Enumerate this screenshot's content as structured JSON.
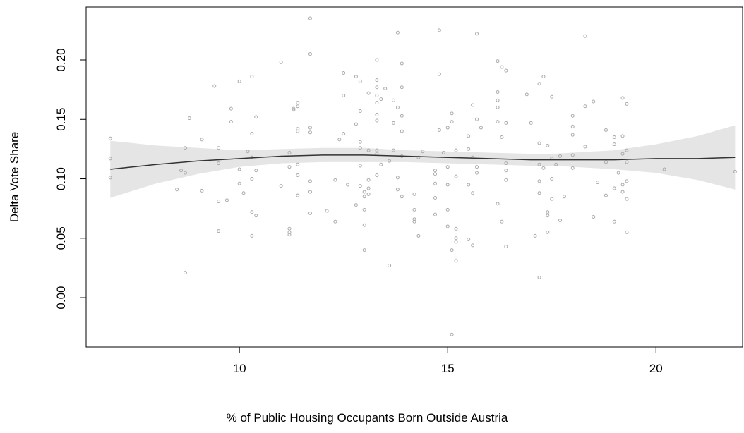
{
  "chart_data": {
    "type": "scatter",
    "x_label": "% of Public Housing Occupants Born Outside Austria",
    "y_label": "Delta Vote Share",
    "xlim": [
      6.32,
      22.08
    ],
    "ylim": [
      -0.0415,
      0.2445
    ],
    "xticks": [
      10,
      15,
      20
    ],
    "yticks": [
      {
        "value": 0,
        "label": "0.00"
      },
      {
        "value": 0.05,
        "label": "0.05"
      },
      {
        "value": 0.1,
        "label": "0.10"
      },
      {
        "value": 0.15,
        "label": "0.15"
      },
      {
        "value": 0.2,
        "label": "0.20"
      }
    ],
    "color": "#aaaaaa",
    "x": [
      6.9,
      6.9,
      6.9,
      8.5,
      8.6,
      8.7,
      8.7,
      8.7,
      8.8,
      9.1,
      9.1,
      9.4,
      9.5,
      9.5,
      9.5,
      9.5,
      9.7,
      9.8,
      9.8,
      10.0,
      10.0,
      10.0,
      10.1,
      10.2,
      10.3,
      10.3,
      10.3,
      10.3,
      10.3,
      10.3,
      10.4,
      10.4,
      10.4,
      11.0,
      11.0,
      11.2,
      11.2,
      11.2,
      11.2,
      11.2,
      11.3,
      11.3,
      11.4,
      11.4,
      11.4,
      11.4,
      11.4,
      11.4,
      11.4,
      11.7,
      11.7,
      11.7,
      11.7,
      11.7,
      11.7,
      11.7,
      12.1,
      12.3,
      12.3,
      12.4,
      12.5,
      12.5,
      12.5,
      12.6,
      12.8,
      12.8,
      12.8,
      12.9,
      12.9,
      12.9,
      12.9,
      12.9,
      12.9,
      13.0,
      13.0,
      13.0,
      13.0,
      13.0,
      13.1,
      13.1,
      13.1,
      13.1,
      13.1,
      13.3,
      13.3,
      13.3,
      13.3,
      13.3,
      13.3,
      13.3,
      13.3,
      13.3,
      13.3,
      13.4,
      13.4,
      13.5,
      13.6,
      13.6,
      13.7,
      13.7,
      13.7,
      13.8,
      13.8,
      13.8,
      13.8,
      13.9,
      13.9,
      13.9,
      13.9,
      13.9,
      13.9,
      14.2,
      14.2,
      14.2,
      14.2,
      14.3,
      14.3,
      14.4,
      14.7,
      14.7,
      14.7,
      14.7,
      14.7,
      14.8,
      14.8,
      14.8,
      14.9,
      15.0,
      15.0,
      15.0,
      15.0,
      15.0,
      15.1,
      15.1,
      15.1,
      15.1,
      15.2,
      15.2,
      15.2,
      15.2,
      15.2,
      15.2,
      15.5,
      15.5,
      15.5,
      15.5,
      15.6,
      15.6,
      15.6,
      15.6,
      15.7,
      15.7,
      15.7,
      15.7,
      15.8,
      16.2,
      16.2,
      16.2,
      16.2,
      16.2,
      16.2,
      16.3,
      16.3,
      16.3,
      16.4,
      16.4,
      16.4,
      16.4,
      16.4,
      16.4,
      16.9,
      17.0,
      17.1,
      17.2,
      17.2,
      17.2,
      17.2,
      17.2,
      17.2,
      17.3,
      17.3,
      17.4,
      17.4,
      17.4,
      17.4,
      17.5,
      17.5,
      17.5,
      17.5,
      17.6,
      17.7,
      17.7,
      17.8,
      18.0,
      18.0,
      18.0,
      18.0,
      18.0,
      18.3,
      18.3,
      18.3,
      18.5,
      18.5,
      18.6,
      18.8,
      18.8,
      18.8,
      19.0,
      19.0,
      19.0,
      19.0,
      19.1,
      19.2,
      19.2,
      19.2,
      19.2,
      19.2,
      19.3,
      19.3,
      19.3,
      19.3,
      19.3,
      19.3,
      20.2,
      21.9
    ],
    "values": [
      0.134,
      0.117,
      0.101,
      0.091,
      0.107,
      0.126,
      0.105,
      0.021,
      0.151,
      0.133,
      0.09,
      0.178,
      0.126,
      0.113,
      0.081,
      0.056,
      0.082,
      0.159,
      0.148,
      0.182,
      0.108,
      0.096,
      0.088,
      0.123,
      0.186,
      0.138,
      0.118,
      0.1,
      0.072,
      0.052,
      0.152,
      0.107,
      0.069,
      0.198,
      0.094,
      0.122,
      0.11,
      0.058,
      0.055,
      0.053,
      0.159,
      0.158,
      0.164,
      0.161,
      0.142,
      0.14,
      0.112,
      0.103,
      0.086,
      0.235,
      0.205,
      0.143,
      0.139,
      0.098,
      0.089,
      0.071,
      0.073,
      0.099,
      0.064,
      0.133,
      0.189,
      0.17,
      0.138,
      0.095,
      0.186,
      0.146,
      0.078,
      0.182,
      0.157,
      0.131,
      0.126,
      0.111,
      0.094,
      0.089,
      0.085,
      0.061,
      0.04,
      0.074,
      0.172,
      0.124,
      0.099,
      0.092,
      0.087,
      0.2,
      0.183,
      0.177,
      0.17,
      0.164,
      0.154,
      0.149,
      0.124,
      0.121,
      0.103,
      0.167,
      0.112,
      0.176,
      0.027,
      0.115,
      0.166,
      0.147,
      0.124,
      0.223,
      0.16,
      0.101,
      0.091,
      0.197,
      0.177,
      0.153,
      0.14,
      0.119,
      0.085,
      0.087,
      0.074,
      0.066,
      0.064,
      0.052,
      0.118,
      0.123,
      0.107,
      0.104,
      0.096,
      0.084,
      0.07,
      0.225,
      0.188,
      0.141,
      0.122,
      0.095,
      0.074,
      0.06,
      0.143,
      0.11,
      0.155,
      0.148,
      0.04,
      -0.031,
      0.124,
      0.102,
      0.058,
      0.05,
      0.047,
      0.031,
      0.136,
      0.125,
      0.095,
      0.049,
      0.118,
      0.162,
      0.088,
      0.044,
      0.222,
      0.15,
      0.11,
      0.105,
      0.143,
      0.199,
      0.173,
      0.166,
      0.16,
      0.148,
      0.079,
      0.194,
      0.135,
      0.064,
      0.191,
      0.147,
      0.107,
      0.099,
      0.043,
      0.113,
      0.171,
      0.147,
      0.052,
      0.18,
      0.13,
      0.112,
      0.098,
      0.088,
      0.017,
      0.186,
      0.109,
      0.128,
      0.072,
      0.069,
      0.055,
      0.169,
      0.117,
      0.1,
      0.083,
      0.112,
      0.119,
      0.065,
      0.085,
      0.153,
      0.144,
      0.137,
      0.12,
      0.109,
      0.22,
      0.161,
      0.127,
      0.165,
      0.068,
      0.097,
      0.141,
      0.114,
      0.086,
      0.135,
      0.092,
      0.064,
      0.129,
      0.105,
      0.168,
      0.136,
      0.121,
      0.095,
      0.089,
      0.163,
      0.124,
      0.114,
      0.098,
      0.055,
      0.083,
      0.108,
      0.106
    ],
    "fit": {
      "color": "#333333",
      "band_color": "#e5e5e5",
      "x": [
        6.9,
        8,
        9,
        10,
        11,
        12,
        12.5,
        13,
        14,
        15,
        16,
        17,
        17.5,
        18,
        19,
        20,
        21,
        21.9
      ],
      "values": [
        0.108,
        0.112,
        0.115,
        0.117,
        0.119,
        0.12,
        0.12,
        0.12,
        0.119,
        0.118,
        0.117,
        0.116,
        0.116,
        0.116,
        0.116,
        0.117,
        0.117,
        0.118
      ],
      "lower": [
        0.084,
        0.096,
        0.104,
        0.11,
        0.113,
        0.114,
        0.114,
        0.114,
        0.114,
        0.113,
        0.112,
        0.111,
        0.111,
        0.11,
        0.108,
        0.105,
        0.099,
        0.091
      ],
      "upper": [
        0.132,
        0.128,
        0.126,
        0.124,
        0.125,
        0.126,
        0.126,
        0.126,
        0.124,
        0.123,
        0.122,
        0.121,
        0.121,
        0.122,
        0.124,
        0.129,
        0.136,
        0.145
      ]
    }
  }
}
